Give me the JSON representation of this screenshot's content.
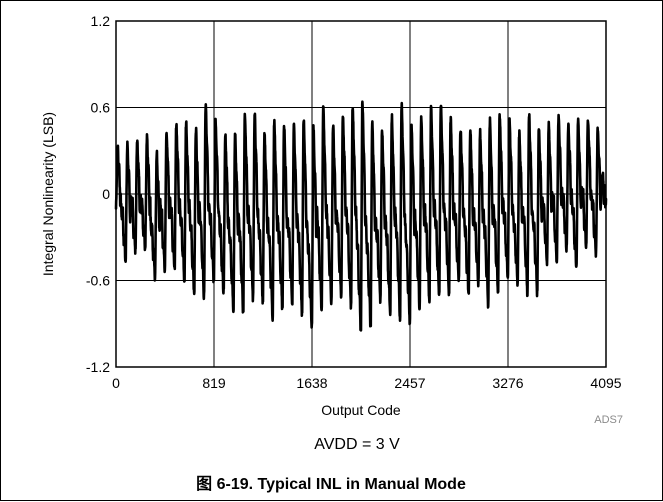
{
  "chart_data": {
    "type": "line",
    "title": "",
    "xlabel": "Output Code",
    "ylabel": "Integral Nonlinearity (LSB)",
    "xlim": [
      0,
      4095
    ],
    "ylim": [
      -1.2,
      1.2
    ],
    "xticks": [
      "0",
      "819",
      "1638",
      "2457",
      "3276",
      "4095"
    ],
    "yticks": [
      "1.2",
      "0.6",
      "0",
      "-0.6",
      "-1.2"
    ],
    "grid": true,
    "series": [
      {
        "name": "",
        "color": "#000000",
        "period_codes": 81.9,
        "x": [
          0,
          82,
          164,
          246,
          328,
          410,
          491,
          573,
          655,
          737,
          819,
          901,
          983,
          1065,
          1147,
          1229,
          1310,
          1392,
          1474,
          1556,
          1638,
          1720,
          1802,
          1884,
          1966,
          2048,
          2129,
          2211,
          2293,
          2375,
          2457,
          2539,
          2621,
          2703,
          2785,
          2866,
          2948,
          3030,
          3112,
          3194,
          3276,
          3358,
          3440,
          3522,
          3604,
          3685,
          3767,
          3849,
          3931,
          4013,
          4095
        ],
        "peaks": [
          0.22,
          0.26,
          0.3,
          0.3,
          0.2,
          0.36,
          0.42,
          0.44,
          0.4,
          0.57,
          0.44,
          0.36,
          0.36,
          0.52,
          0.5,
          0.36,
          0.47,
          0.44,
          0.43,
          0.46,
          0.42,
          0.56,
          0.42,
          0.5,
          0.56,
          0.6,
          0.46,
          0.38,
          0.49,
          0.59,
          0.44,
          0.48,
          0.55,
          0.57,
          0.46,
          0.4,
          0.38,
          0.36,
          0.46,
          0.5,
          0.44,
          0.36,
          0.5,
          0.42,
          0.4,
          0.48,
          0.4,
          0.44,
          0.44,
          0.38,
          0.24
        ],
        "troughs": [
          -0.1,
          -0.42,
          -0.36,
          -0.36,
          -0.54,
          -0.5,
          -0.5,
          -0.58,
          -0.66,
          -0.7,
          -0.58,
          -0.66,
          -0.78,
          -0.8,
          -0.7,
          -0.72,
          -0.84,
          -0.78,
          -0.74,
          -0.8,
          -0.9,
          -0.78,
          -0.72,
          -0.7,
          -0.76,
          -0.94,
          -0.9,
          -0.72,
          -0.82,
          -0.84,
          -0.86,
          -0.76,
          -0.72,
          -0.7,
          -0.66,
          -0.58,
          -0.68,
          -0.6,
          -0.74,
          -0.66,
          -0.56,
          -0.6,
          -0.66,
          -0.66,
          -0.46,
          -0.44,
          -0.36,
          -0.5,
          -0.34,
          -0.38,
          -0.04
        ]
      }
    ],
    "annotations": [
      "ADS7",
      "AVDD = 3 V"
    ]
  },
  "figure": {
    "note": "ADS7",
    "condition": "AVDD = 3 V",
    "caption": "图 6-19. Typical INL in Manual Mode"
  }
}
